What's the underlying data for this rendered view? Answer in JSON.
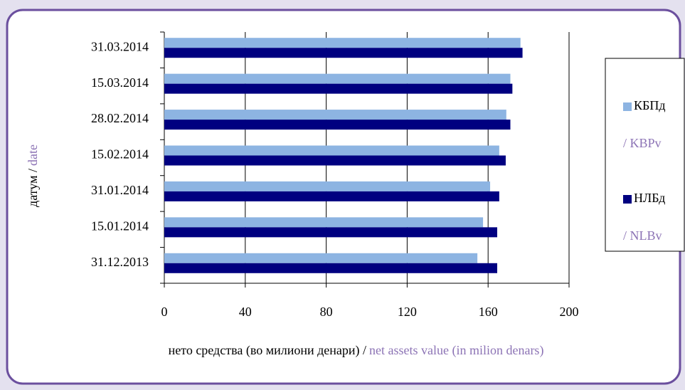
{
  "chart_data": {
    "type": "barh",
    "categories": [
      "31.03.2014",
      "15.03.2014",
      "28.02.2014",
      "15.02.2014",
      "31.01.2014",
      "15.01.2014",
      "31.12.2013"
    ],
    "series": [
      {
        "name": "КБПд",
        "name_en": "/ KBPv",
        "color": "#8db4e2",
        "values": [
          176,
          171,
          169,
          165.5,
          161,
          157.5,
          154.7
        ]
      },
      {
        "name": "НЛБд",
        "name_en": "/ NLBv",
        "color": "#000080",
        "values": [
          177,
          172,
          171,
          168.7,
          165.5,
          164.5,
          164.5
        ]
      }
    ],
    "xlim": [
      0,
      200
    ],
    "xticks": [
      0,
      40,
      80,
      120,
      160,
      200
    ],
    "grid": true,
    "xlabel": "нето средства (во милиони денари) /",
    "xlabel_en": "net assets value (in milion denars)",
    "ylabel": "датум /",
    "ylabel_en": "date"
  }
}
